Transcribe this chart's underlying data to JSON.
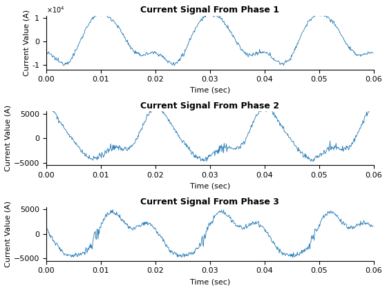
{
  "title1": "Current Signal From Phase 1",
  "title2": "Current Signal From Phase 2",
  "title3": "Current Signal From Phase 3",
  "xlabel": "Time (sec)",
  "ylabel": "Current Value (A)",
  "xlim": [
    0,
    0.06
  ],
  "ylim1": [
    -12000,
    11000
  ],
  "ylim2": [
    -5500,
    5500
  ],
  "ylim3": [
    -5500,
    5500
  ],
  "yticks1": [
    -10000,
    0,
    10000
  ],
  "ytick_labels1": [
    "-1",
    "0",
    "1"
  ],
  "yticks2": [
    -5000,
    0,
    5000
  ],
  "yticks3": [
    -5000,
    0,
    5000
  ],
  "xticks": [
    0,
    0.01,
    0.02,
    0.03,
    0.04,
    0.05,
    0.06
  ],
  "line_color": "#1f77b4",
  "line_width": 0.6,
  "freq": 50,
  "sample_rate": 10000,
  "duration": 0.06,
  "background_color": "#ffffff",
  "title_fontsize": 9,
  "label_fontsize": 8,
  "tick_fontsize": 8
}
